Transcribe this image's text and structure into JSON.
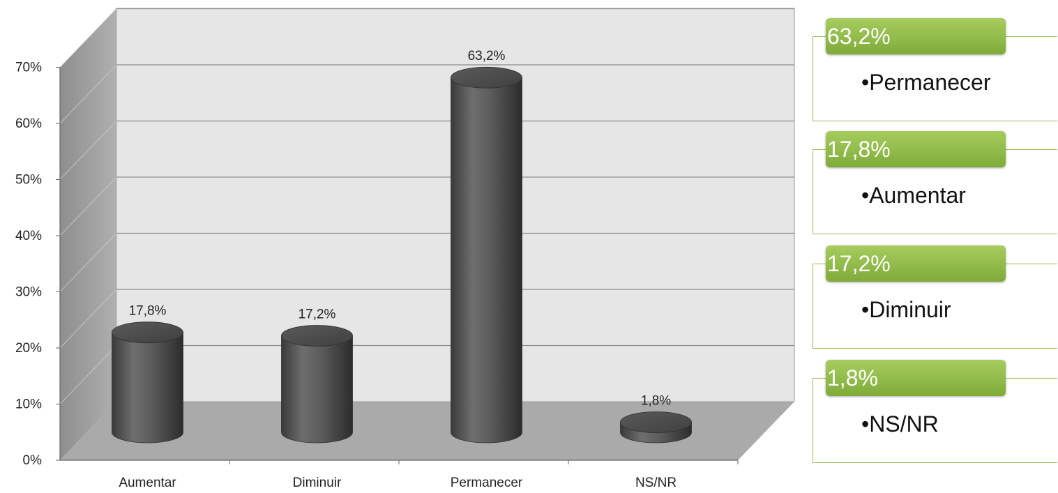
{
  "chart_data": {
    "type": "bar",
    "categories": [
      "Aumentar",
      "Diminuir",
      "Permanecer",
      "NS/NR"
    ],
    "values": [
      17.8,
      17.2,
      63.2,
      1.8
    ],
    "data_labels": [
      "17,8%",
      "17,2%",
      "63,2%",
      "1,8%"
    ],
    "y_ticks": [
      "0%",
      "10%",
      "20%",
      "30%",
      "40%",
      "50%",
      "60%",
      "70%"
    ],
    "ylim": [
      0,
      70
    ],
    "grid": true,
    "title": "",
    "xlabel": "",
    "ylabel": "",
    "colors": {
      "bar": "#5a5a5a",
      "wall": "#e6e6e6",
      "floor": "#aaaaaa",
      "side": "#999999"
    }
  },
  "callouts": [
    {
      "value": "63,2%",
      "item": "•Permanecer"
    },
    {
      "value": "17,8%",
      "item": "•Aumentar"
    },
    {
      "value": "17,2%",
      "item": "•Diminuir"
    },
    {
      "value": "1,8%",
      "item": "•NS/NR"
    }
  ],
  "colors": {
    "callout_green": "#8db848"
  }
}
